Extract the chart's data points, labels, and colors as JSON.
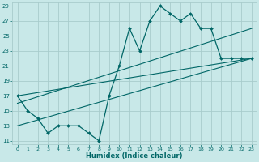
{
  "bg_color": "#c8e8e8",
  "grid_color": "#a8cccc",
  "line_color": "#006666",
  "xlim": [
    -0.5,
    23.5
  ],
  "ylim": [
    10.5,
    29.5
  ],
  "xticks": [
    0,
    1,
    2,
    3,
    4,
    5,
    6,
    7,
    8,
    9,
    10,
    11,
    12,
    13,
    14,
    15,
    16,
    17,
    18,
    19,
    20,
    21,
    22,
    23
  ],
  "yticks": [
    11,
    13,
    15,
    17,
    19,
    21,
    23,
    25,
    27,
    29
  ],
  "xlabel": "Humidex (Indice chaleur)",
  "main_x": [
    0,
    1,
    2,
    3,
    4,
    5,
    6,
    7,
    8,
    9,
    10,
    11,
    12,
    13,
    14,
    15,
    16,
    17,
    18,
    19,
    20,
    21,
    22,
    23
  ],
  "main_y": [
    17,
    15,
    14,
    12,
    13,
    13,
    13,
    12,
    11,
    17,
    21,
    26,
    23,
    27,
    29,
    28,
    27,
    28,
    26,
    26,
    22,
    22,
    22,
    22
  ],
  "trend1_x": [
    0,
    23
  ],
  "trend1_y": [
    17,
    22
  ],
  "trend2_x": [
    0,
    23
  ],
  "trend2_y": [
    16,
    26
  ],
  "trend3_x": [
    0,
    23
  ],
  "trend3_y": [
    13,
    22
  ]
}
